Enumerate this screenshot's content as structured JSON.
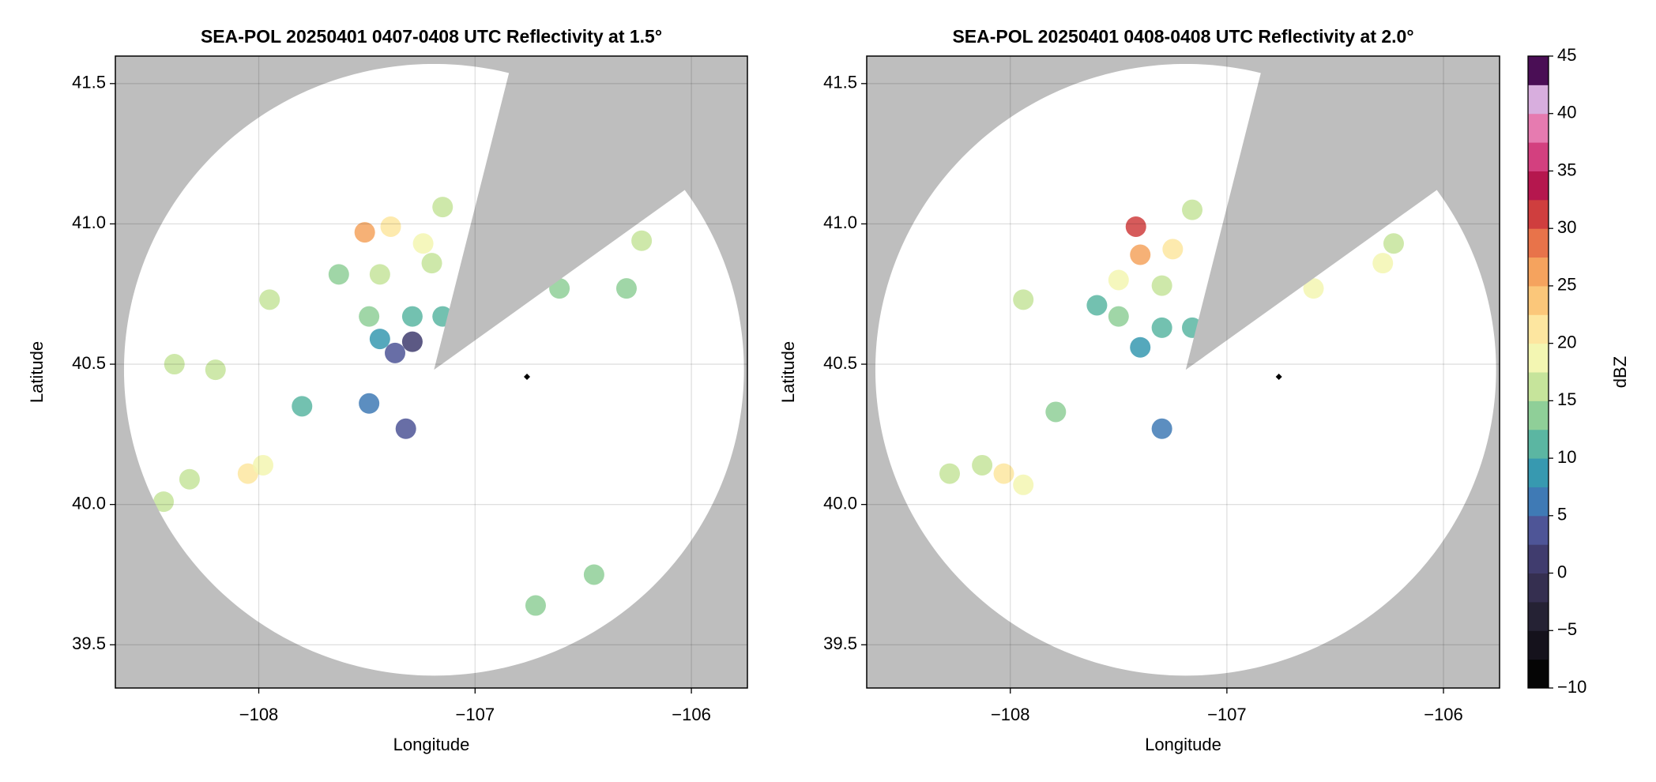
{
  "chart_data": [
    {
      "type": "radar-ppi",
      "title": "SEA-POL 20250401 0407-0408 UTC Reflectivity at 1.5°",
      "xlabel": "Longitude",
      "ylabel": "Latitude",
      "xlim": [
        -108.663,
        -105.741
      ],
      "ylim": [
        39.346,
        41.598
      ],
      "xticks": [
        {
          "value": -108,
          "label": "−108"
        },
        {
          "value": -107,
          "label": "−107"
        },
        {
          "value": -106,
          "label": "−106"
        }
      ],
      "yticks": [
        39.5,
        {
          "value": 40,
          "label": "40.0"
        },
        40.5,
        {
          "value": 41,
          "label": "41.0"
        },
        41.5
      ],
      "grid": true,
      "background_color": "#bebebe",
      "radar": {
        "lon": -107.19,
        "lat": 40.48,
        "range_deg": 1.09,
        "blocked_azimuth": [
          14,
          54
        ]
      },
      "marker": {
        "lon": -106.76,
        "lat": 40.455,
        "color": "#000000"
      },
      "echoes": {
        "lon": [
          -107.51,
          -107.39,
          -107.24,
          -107.44,
          -107.2,
          -107.49,
          -107.29,
          -107.44,
          -107.29,
          -107.37,
          -107.15,
          -107.63,
          -107.15,
          -107.95,
          -108.39,
          -108.2,
          -108.05,
          -107.98,
          -108.32,
          -108.44,
          -107.8,
          -106.61,
          -106.3,
          -106.23,
          -106.72,
          -106.45,
          -107.49,
          -107.32
        ],
        "lat": [
          40.97,
          40.99,
          40.93,
          40.82,
          40.86,
          40.67,
          40.67,
          40.59,
          40.58,
          40.54,
          41.06,
          40.82,
          40.67,
          40.73,
          40.5,
          40.48,
          40.11,
          40.14,
          40.09,
          40.01,
          40.35,
          40.77,
          40.77,
          40.94,
          39.64,
          39.75,
          40.36,
          40.27
        ],
        "dbz": [
          26,
          20,
          18,
          17,
          15,
          14,
          12,
          8,
          2,
          3,
          15,
          14,
          10,
          17,
          17,
          16,
          22,
          18,
          17,
          16,
          12,
          13,
          13,
          17,
          14,
          14,
          5,
          3
        ]
      }
    },
    {
      "type": "radar-ppi",
      "title": "SEA-POL 20250401 0408-0408 UTC Reflectivity at 2.0°",
      "xlabel": "Longitude",
      "ylabel": "Latitude",
      "xlim": [
        -108.663,
        -105.741
      ],
      "ylim": [
        39.346,
        41.598
      ],
      "xticks": [
        {
          "value": -108,
          "label": "−108"
        },
        {
          "value": -107,
          "label": "−107"
        },
        {
          "value": -106,
          "label": "−106"
        }
      ],
      "yticks": [
        39.5,
        {
          "value": 40,
          "label": "40.0"
        },
        40.5,
        {
          "value": 41,
          "label": "41.0"
        },
        41.5
      ],
      "grid": true,
      "background_color": "#bebebe",
      "radar": {
        "lon": -107.19,
        "lat": 40.48,
        "range_deg": 1.09,
        "blocked_azimuth": [
          14,
          54
        ]
      },
      "marker": {
        "lon": -106.76,
        "lat": 40.455,
        "color": "#000000"
      },
      "echoes": {
        "lon": [
          -107.4,
          -107.42,
          -107.25,
          -107.5,
          -107.3,
          -107.5,
          -107.3,
          -107.4,
          -107.16,
          -107.6,
          -107.16,
          -106.6,
          -106.28,
          -106.23,
          -107.79,
          -108.03,
          -108.13,
          -107.94,
          -108.28,
          -107.3,
          -107.94
        ],
        "lat": [
          40.89,
          40.99,
          40.91,
          40.8,
          40.78,
          40.67,
          40.63,
          40.56,
          41.05,
          40.71,
          40.63,
          40.77,
          40.86,
          40.93,
          40.33,
          40.11,
          40.14,
          40.07,
          40.11,
          40.27,
          40.73
        ],
        "dbz": [
          25,
          32,
          22,
          18,
          17,
          14,
          12,
          8,
          15,
          12,
          10,
          18,
          18,
          17,
          13,
          20,
          17,
          18,
          15,
          5,
          15
        ]
      }
    }
  ],
  "colorbar": {
    "label": "dBZ",
    "lim": [
      -10,
      45
    ],
    "ticks": [
      {
        "value": -10,
        "label": "−10"
      },
      {
        "value": -5,
        "label": "−5"
      },
      0,
      5,
      10,
      15,
      20,
      25,
      30,
      35,
      40,
      45
    ],
    "colors": [
      "#050505",
      "#15121c",
      "#252234",
      "#352f50",
      "#403c6e",
      "#4e5597",
      "#3f7ab5",
      "#3799b0",
      "#5bb6a2",
      "#8fcf98",
      "#c6e49b",
      "#f3f6b2",
      "#fde6a0",
      "#fbc77a",
      "#f5a35e",
      "#e8734a",
      "#cf3e3e",
      "#b5174e",
      "#d3407f",
      "#e67bb0",
      "#d8aede",
      "#4a0e55"
    ]
  }
}
